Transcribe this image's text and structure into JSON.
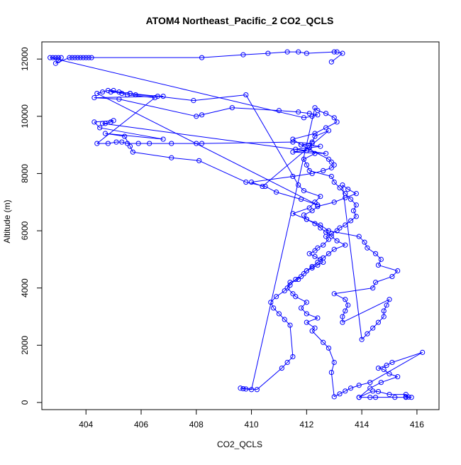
{
  "chart_data": {
    "type": "line",
    "title": "ATOM4 Northeast_Pacific_2 CO2_QCLS",
    "xlabel": "CO2_QCLS",
    "ylabel": "Altitude (m)",
    "xlim": [
      402.4,
      416.8
    ],
    "ylim": [
      -250,
      12600
    ],
    "x_ticks": [
      404,
      406,
      408,
      410,
      412,
      414,
      416
    ],
    "y_ticks": [
      0,
      2000,
      4000,
      6000,
      8000,
      10000,
      12000
    ],
    "marker": "open-circle",
    "grid": false,
    "color": "#0000ff",
    "x": [
      413.9,
      414.3,
      414.5,
      415.2,
      415.6,
      415.8,
      415.7,
      415.6,
      415.6,
      415.0,
      414.6,
      414.4,
      413.9,
      414.3,
      414.7,
      415.3,
      415.0,
      414.8,
      414.6,
      414.9,
      415.1,
      416.2,
      414.3,
      413.9,
      413.6,
      413.4,
      413.2,
      413.0,
      412.9,
      413.0,
      412.8,
      412.6,
      412.2,
      412.3,
      412.0,
      412.4,
      412.0,
      411.8,
      412.0,
      411.6,
      411.5,
      411.3,
      411.4,
      411.7,
      411.9,
      412.0,
      412.2,
      412.4,
      412.6,
      412.5,
      412.3,
      412.1,
      412.3,
      412.4,
      412.6,
      412.8,
      412.7,
      412.9,
      413.1,
      413.2,
      413.4,
      413.6,
      413.8,
      413.7,
      413.8,
      413.6,
      413.4,
      413.2,
      413.0,
      412.9,
      412.1,
      412.0,
      411.9,
      412.3,
      412.1,
      412.2,
      412.3,
      412.8,
      410.4,
      410.0,
      411.5,
      412.2,
      412.6,
      412.9,
      413.0,
      412.9,
      412.8,
      411.8,
      411.5,
      412.3,
      412.7,
      413.1,
      413.0,
      412.7,
      412.4,
      412.3,
      410.0,
      409.8,
      409.7,
      409.6,
      410.2,
      411.1,
      411.3,
      411.5,
      411.4,
      411.2,
      411.0,
      410.8,
      410.7,
      410.9,
      411.2,
      411.4,
      411.6,
      411.8,
      412.0,
      412.2,
      412.4,
      412.6,
      412.8,
      413.0,
      413.4,
      413.1,
      412.9,
      412.7,
      412.5,
      412.3,
      412.0,
      411.9,
      412.2,
      412.4,
      413.0,
      413.4,
      413.8,
      413.5,
      413.3,
      414.0,
      414.2,
      414.4,
      414.6,
      414.8,
      414.8,
      414.9,
      415.0,
      413.3,
      413.3,
      413.4,
      413.5,
      413.4,
      413.0,
      414.4,
      414.5,
      415.1,
      415.3,
      414.6,
      414.7,
      414.5,
      414.2,
      414.1,
      413.9,
      412.8,
      412.5,
      412.0,
      411.5,
      412.1,
      412.3,
      412.5,
      411.9,
      411.7,
      409.8,
      407.9,
      406.6,
      405.6,
      404.9,
      405.0,
      405.3,
      405.5,
      406.5,
      404.4,
      404.8,
      405.1,
      405.3,
      405.5,
      405.9,
      406.3,
      407.1,
      408.0,
      408.2,
      411.5,
      412.2,
      411.8,
      412.5,
      412.1,
      411.6,
      412.0,
      411.5,
      412.7,
      404.6,
      404.7,
      404.9,
      405.0,
      404.3,
      404.5,
      406.8,
      404.7,
      405.4,
      405.6,
      405.7,
      407.1,
      408.1,
      409.8,
      410.5,
      410.9,
      411.8,
      412.4,
      404.4,
      404.6,
      404.8,
      405.2,
      405.6,
      405.8,
      406.8,
      404.3,
      405.2,
      408.0,
      408.2,
      409.3,
      411.0,
      411.7,
      412.1,
      412.4,
      412.2,
      411.9,
      402.7,
      402.8,
      402.9,
      403.0,
      403.1,
      403.0,
      402.9,
      403.4,
      403.5,
      403.6,
      403.7,
      403.8,
      403.9,
      404.0,
      404.1,
      404.2,
      408.2,
      409.7,
      410.6,
      411.3,
      411.7,
      412.0,
      413.0,
      413.1,
      413.3,
      412.9
    ],
    "y": [
      180,
      180,
      180,
      180,
      180,
      180,
      190,
      200,
      280,
      280,
      380,
      400,
      180,
      500,
      700,
      900,
      1000,
      1150,
      1200,
      1300,
      1400,
      1750,
      700,
      600,
      500,
      400,
      300,
      200,
      1050,
      1400,
      1900,
      2100,
      2500,
      2600,
      2800,
      2950,
      3100,
      3300,
      3500,
      3700,
      3800,
      4000,
      4200,
      4300,
      4500,
      4600,
      4700,
      4800,
      4900,
      5000,
      5100,
      5200,
      5300,
      5400,
      5500,
      5700,
      5800,
      5900,
      6000,
      6100,
      6200,
      6350,
      6500,
      6700,
      6900,
      7100,
      7300,
      7500,
      7700,
      7900,
      8100,
      8300,
      8500,
      8700,
      8900,
      9100,
      9300,
      9500,
      7550,
      7700,
      7900,
      8000,
      8100,
      8200,
      8300,
      8400,
      8500,
      9000,
      9200,
      9400,
      9600,
      9800,
      9950,
      10100,
      10200,
      10300,
      450,
      470,
      480,
      500,
      450,
      1200,
      1400,
      1600,
      2700,
      2900,
      3100,
      3300,
      3500,
      3700,
      3900,
      4100,
      4300,
      4400,
      4600,
      4750,
      4900,
      5050,
      5200,
      5350,
      5500,
      5650,
      5800,
      5950,
      6100,
      6250,
      6400,
      6550,
      6700,
      6850,
      7000,
      7150,
      7300,
      7450,
      7600,
      2200,
      2400,
      2600,
      2800,
      3000,
      3200,
      3400,
      3600,
      2800,
      3000,
      3200,
      3400,
      3600,
      3800,
      4000,
      4200,
      4400,
      4600,
      4800,
      5000,
      5200,
      5400,
      5600,
      5800,
      6000,
      6200,
      6400,
      6600,
      6800,
      7000,
      7200,
      7400,
      7600,
      10750,
      10550,
      10700,
      10800,
      10850,
      10900,
      10800,
      10750,
      10650,
      9050,
      9050,
      9100,
      9100,
      9050,
      9050,
      9050,
      9050,
      9050,
      9050,
      9100,
      9050,
      9000,
      8950,
      8900,
      8850,
      8800,
      8750,
      8700,
      9750,
      9750,
      9800,
      9850,
      9800,
      9600,
      9200,
      9400,
      9300,
      8950,
      8750,
      8550,
      8450,
      7700,
      7550,
      7350,
      7100,
      6900,
      10800,
      10850,
      10900,
      10850,
      10800,
      10750,
      10700,
      10650,
      10600,
      10000,
      10050,
      10300,
      10200,
      10150,
      10100,
      10050,
      10000,
      9950,
      12050,
      12050,
      12050,
      12050,
      12050,
      11950,
      11850,
      12050,
      12050,
      12050,
      12050,
      12050,
      12050,
      12050,
      12050,
      12050,
      12050,
      12150,
      12200,
      12250,
      12250,
      12200,
      12250,
      12250,
      12200,
      11900
    ]
  }
}
